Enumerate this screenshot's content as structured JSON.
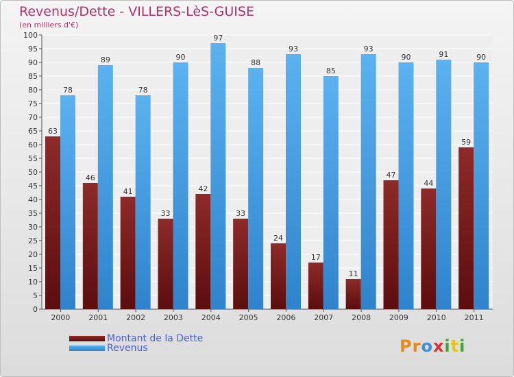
{
  "chart_data": {
    "type": "bar",
    "title": "Revenus/Dette - VILLERS-LèS-GUISE",
    "subtitle": "(en milliers d'€)",
    "xlabel": "",
    "ylabel": "",
    "ylim": [
      0,
      100
    ],
    "ytick_step": 5,
    "grid": true,
    "legend_position": "bottom-left",
    "categories": [
      "2000",
      "2001",
      "2002",
      "2003",
      "2004",
      "2005",
      "2006",
      "2007",
      "2008",
      "2009",
      "2010",
      "2011"
    ],
    "series": [
      {
        "name": "Montant de la Dette",
        "color": "#7a1f1f",
        "values": [
          63,
          46,
          41,
          33,
          42,
          33,
          24,
          17,
          11,
          47,
          44,
          59
        ]
      },
      {
        "name": "Revenus",
        "color": "#4aa3e6",
        "values": [
          78,
          89,
          78,
          90,
          97,
          88,
          93,
          85,
          93,
          90,
          91,
          90
        ]
      }
    ]
  },
  "brand": {
    "letters": [
      "P",
      "r",
      "o",
      "x",
      "i",
      "t",
      "i"
    ],
    "colors": [
      "#e8891c",
      "#e8891c",
      "#3f8fd6",
      "#d63232",
      "#3fa43a",
      "#e8c21c",
      "#3fa43a"
    ]
  }
}
